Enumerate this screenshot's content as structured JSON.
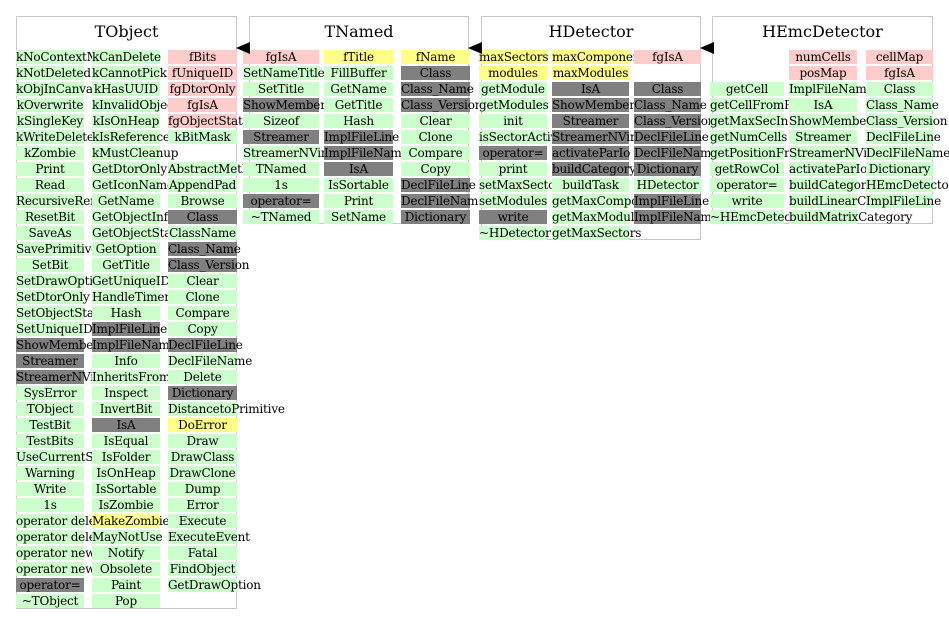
{
  "colors": {
    "green": "#ccffcc",
    "pink": "#ffcccc",
    "yellow": "#ffff88",
    "gray": "#808080"
  },
  "classes": [
    {
      "id": "tobject",
      "title": "TObject",
      "columns": [
        [
          {
            "t": "kNoContextMenu",
            "c": "green"
          },
          {
            "t": "kNotDeleted",
            "c": "green"
          },
          {
            "t": "kObjInCanvas",
            "c": "green"
          },
          {
            "t": "kOverwrite",
            "c": "green"
          },
          {
            "t": "kSingleKey",
            "c": "green"
          },
          {
            "t": "kWriteDelete",
            "c": "green"
          },
          {
            "t": "kZombie",
            "c": "green"
          },
          {
            "t": "Print",
            "c": "green"
          },
          {
            "t": "Read",
            "c": "green"
          },
          {
            "t": "RecursiveRemove",
            "c": "green"
          },
          {
            "t": "ResetBit",
            "c": "green"
          },
          {
            "t": "SaveAs",
            "c": "green"
          },
          {
            "t": "SavePrimitive",
            "c": "green"
          },
          {
            "t": "SetBit",
            "c": "green"
          },
          {
            "t": "SetDrawOption",
            "c": "green"
          },
          {
            "t": "SetDtorOnly",
            "c": "green"
          },
          {
            "t": "SetObjectStat",
            "c": "green"
          },
          {
            "t": "SetUniqueID",
            "c": "green"
          },
          {
            "t": "ShowMembers",
            "c": "gray"
          },
          {
            "t": "Streamer",
            "c": "gray"
          },
          {
            "t": "StreamerNVirtual",
            "c": "gray"
          },
          {
            "t": "SysError",
            "c": "green"
          },
          {
            "t": "TObject",
            "c": "green"
          },
          {
            "t": "TestBit",
            "c": "green"
          },
          {
            "t": "TestBits",
            "c": "green"
          },
          {
            "t": "UseCurrentStyle",
            "c": "green"
          },
          {
            "t": "Warning",
            "c": "green"
          },
          {
            "t": "Write",
            "c": "green"
          },
          {
            "t": "1s",
            "c": "green"
          },
          {
            "t": "operator delete",
            "c": "green"
          },
          {
            "t": "operator delete[]",
            "c": "green"
          },
          {
            "t": "operator new",
            "c": "green"
          },
          {
            "t": "operator new[]",
            "c": "green"
          },
          {
            "t": "operator=",
            "c": "gray"
          },
          {
            "t": "~TObject",
            "c": "green"
          }
        ],
        [
          {
            "t": "kCanDelete",
            "c": "green"
          },
          {
            "t": "kCannotPick",
            "c": "green"
          },
          {
            "t": "kHasUUID",
            "c": "green"
          },
          {
            "t": "kInvalidObject",
            "c": "green"
          },
          {
            "t": "kIsOnHeap",
            "c": "green"
          },
          {
            "t": "kIsReferenced",
            "c": "green"
          },
          {
            "t": "kMustCleanup",
            "c": "green"
          },
          {
            "t": "GetDtorOnly",
            "c": "green"
          },
          {
            "t": "GetIconName",
            "c": "green"
          },
          {
            "t": "GetName",
            "c": "green"
          },
          {
            "t": "GetObjectInfo",
            "c": "green"
          },
          {
            "t": "GetObjectStat",
            "c": "green"
          },
          {
            "t": "GetOption",
            "c": "green"
          },
          {
            "t": "GetTitle",
            "c": "green"
          },
          {
            "t": "GetUniqueID",
            "c": "green"
          },
          {
            "t": "HandleTimer",
            "c": "green"
          },
          {
            "t": "Hash",
            "c": "green"
          },
          {
            "t": "ImplFileLine",
            "c": "gray"
          },
          {
            "t": "ImplFileName",
            "c": "gray"
          },
          {
            "t": "Info",
            "c": "green"
          },
          {
            "t": "InheritsFrom",
            "c": "green"
          },
          {
            "t": "Inspect",
            "c": "green"
          },
          {
            "t": "InvertBit",
            "c": "green"
          },
          {
            "t": "IsA",
            "c": "gray"
          },
          {
            "t": "IsEqual",
            "c": "green"
          },
          {
            "t": "IsFolder",
            "c": "green"
          },
          {
            "t": "IsOnHeap",
            "c": "green"
          },
          {
            "t": "IsSortable",
            "c": "green"
          },
          {
            "t": "IsZombie",
            "c": "green"
          },
          {
            "t": "MakeZombie",
            "c": "yellow"
          },
          {
            "t": "MayNotUse",
            "c": "green"
          },
          {
            "t": "Notify",
            "c": "green"
          },
          {
            "t": "Obsolete",
            "c": "green"
          },
          {
            "t": "Paint",
            "c": "green"
          },
          {
            "t": "Pop",
            "c": "green"
          }
        ],
        [
          {
            "t": "fBits",
            "c": "pink"
          },
          {
            "t": "fUniqueID",
            "c": "pink"
          },
          {
            "t": "fgDtorOnly",
            "c": "pink"
          },
          {
            "t": "fgIsA",
            "c": "pink"
          },
          {
            "t": "fgObjectStat",
            "c": "pink"
          },
          {
            "t": "kBitMask",
            "c": "green"
          },
          {
            "t": "",
            "c": "white"
          },
          {
            "t": "AbstractMethod",
            "c": "green"
          },
          {
            "t": "AppendPad",
            "c": "green"
          },
          {
            "t": "Browse",
            "c": "green"
          },
          {
            "t": "Class",
            "c": "gray"
          },
          {
            "t": "ClassName",
            "c": "green"
          },
          {
            "t": "Class_Name",
            "c": "gray"
          },
          {
            "t": "Class_Version",
            "c": "gray"
          },
          {
            "t": "Clear",
            "c": "green"
          },
          {
            "t": "Clone",
            "c": "green"
          },
          {
            "t": "Compare",
            "c": "green"
          },
          {
            "t": "Copy",
            "c": "green"
          },
          {
            "t": "DeclFileLine",
            "c": "gray"
          },
          {
            "t": "DeclFileName",
            "c": "green"
          },
          {
            "t": "Delete",
            "c": "green"
          },
          {
            "t": "Dictionary",
            "c": "gray"
          },
          {
            "t": "DistancetoPrimitive",
            "c": "green"
          },
          {
            "t": "DoError",
            "c": "yellow"
          },
          {
            "t": "Draw",
            "c": "green"
          },
          {
            "t": "DrawClass",
            "c": "green"
          },
          {
            "t": "DrawClone",
            "c": "green"
          },
          {
            "t": "Dump",
            "c": "green"
          },
          {
            "t": "Error",
            "c": "green"
          },
          {
            "t": "Execute",
            "c": "green"
          },
          {
            "t": "ExecuteEvent",
            "c": "green"
          },
          {
            "t": "Fatal",
            "c": "green"
          },
          {
            "t": "FindObject",
            "c": "green"
          },
          {
            "t": "GetDrawOption",
            "c": "green"
          }
        ]
      ]
    },
    {
      "id": "tnamed",
      "title": "TNamed",
      "columns": [
        [
          {
            "t": "fgIsA",
            "c": "pink"
          },
          {
            "t": "SetNameTitle",
            "c": "green"
          },
          {
            "t": "SetTitle",
            "c": "green"
          },
          {
            "t": "ShowMembers",
            "c": "gray"
          },
          {
            "t": "Sizeof",
            "c": "green"
          },
          {
            "t": "Streamer",
            "c": "gray"
          },
          {
            "t": "StreamerNVirtual",
            "c": "green"
          },
          {
            "t": "TNamed",
            "c": "green"
          },
          {
            "t": "1s",
            "c": "green"
          },
          {
            "t": "operator=",
            "c": "gray"
          },
          {
            "t": "~TNamed",
            "c": "green"
          }
        ],
        [
          {
            "t": "fTitle",
            "c": "yellow"
          },
          {
            "t": "FillBuffer",
            "c": "green"
          },
          {
            "t": "GetName",
            "c": "green"
          },
          {
            "t": "GetTitle",
            "c": "green"
          },
          {
            "t": "Hash",
            "c": "green"
          },
          {
            "t": "ImplFileLine",
            "c": "gray"
          },
          {
            "t": "ImplFileName",
            "c": "gray"
          },
          {
            "t": "IsA",
            "c": "gray"
          },
          {
            "t": "IsSortable",
            "c": "green"
          },
          {
            "t": "Print",
            "c": "green"
          },
          {
            "t": "SetName",
            "c": "green"
          }
        ],
        [
          {
            "t": "fName",
            "c": "yellow"
          },
          {
            "t": "Class",
            "c": "gray"
          },
          {
            "t": "Class_Name",
            "c": "gray"
          },
          {
            "t": "Class_Version",
            "c": "gray"
          },
          {
            "t": "Clear",
            "c": "green"
          },
          {
            "t": "Clone",
            "c": "green"
          },
          {
            "t": "Compare",
            "c": "green"
          },
          {
            "t": "Copy",
            "c": "green"
          },
          {
            "t": "DeclFileLine",
            "c": "gray"
          },
          {
            "t": "DeclFileName",
            "c": "gray"
          },
          {
            "t": "Dictionary",
            "c": "gray"
          }
        ]
      ]
    },
    {
      "id": "hdetector",
      "title": "HDetector",
      "columns": [
        [
          {
            "t": "maxSectors",
            "c": "yellow"
          },
          {
            "t": "modules",
            "c": "yellow"
          },
          {
            "t": "getModule",
            "c": "green"
          },
          {
            "t": "getModules",
            "c": "green"
          },
          {
            "t": "init",
            "c": "green"
          },
          {
            "t": "isSectorActive",
            "c": "green"
          },
          {
            "t": "operator=",
            "c": "gray"
          },
          {
            "t": "print",
            "c": "green"
          },
          {
            "t": "setMaxSectors",
            "c": "green"
          },
          {
            "t": "setModules",
            "c": "green"
          },
          {
            "t": "write",
            "c": "gray"
          },
          {
            "t": "~HDetector",
            "c": "green"
          }
        ],
        [
          {
            "t": "maxComponents",
            "c": "yellow"
          },
          {
            "t": "maxModules",
            "c": "yellow"
          },
          {
            "t": "",
            "c": "white"
          },
          {
            "t": "ShowMembers",
            "c": "gray"
          },
          {
            "t": "Streamer",
            "c": "gray"
          },
          {
            "t": "StreamerNVirtual",
            "c": "gray"
          },
          {
            "t": "activateParIo",
            "c": "gray"
          },
          {
            "t": "buildCategory",
            "c": "gray"
          },
          {
            "t": "buildTask",
            "c": "green"
          },
          {
            "t": "getMaxComponents",
            "c": "green"
          },
          {
            "t": "getMaxModules",
            "c": "green"
          },
          {
            "t": "getMaxSectors",
            "c": "green"
          }
        ],
        [
          {
            "t": "fgIsA",
            "c": "pink"
          },
          {
            "t": "",
            "c": "white"
          },
          {
            "t": "Class",
            "c": "gray"
          },
          {
            "t": "Class_Name",
            "c": "gray"
          },
          {
            "t": "Class_Version",
            "c": "gray"
          },
          {
            "t": "DeclFileLine",
            "c": "gray"
          },
          {
            "t": "DeclFileName",
            "c": "gray"
          },
          {
            "t": "Dictionary",
            "c": "gray"
          },
          {
            "t": "HDetector",
            "c": "green"
          },
          {
            "t": "ImplFileLine",
            "c": "gray"
          },
          {
            "t": "ImplFileName",
            "c": "gray"
          }
        ]
      ],
      "extra": {
        "t": "IsA",
        "c": "gray"
      }
    },
    {
      "id": "hemcdetector",
      "title": "HEmcDetector",
      "columns": [
        [
          {
            "t": "",
            "c": "white"
          },
          {
            "t": "",
            "c": "white"
          },
          {
            "t": "getCell",
            "c": "green"
          },
          {
            "t": "getCellFromPosition",
            "c": "green"
          },
          {
            "t": "getMaxSecInSetup",
            "c": "green"
          },
          {
            "t": "getNumCells",
            "c": "green"
          },
          {
            "t": "getPositionFromCell",
            "c": "green"
          },
          {
            "t": "getRowCol",
            "c": "green"
          },
          {
            "t": "operator=",
            "c": "green"
          },
          {
            "t": "write",
            "c": "green"
          },
          {
            "t": "~HEmcDetector",
            "c": "green"
          }
        ],
        [
          {
            "t": "numCells",
            "c": "pink"
          },
          {
            "t": "posMap",
            "c": "pink"
          },
          {
            "t": "ImplFileName",
            "c": "green"
          },
          {
            "t": "IsA",
            "c": "green"
          },
          {
            "t": "ShowMembers",
            "c": "green"
          },
          {
            "t": "Streamer",
            "c": "green"
          },
          {
            "t": "StreamerNVirtual",
            "c": "green"
          },
          {
            "t": "activateParIo",
            "c": "green"
          },
          {
            "t": "buildCategory",
            "c": "green"
          },
          {
            "t": "buildLinearCategory",
            "c": "green"
          },
          {
            "t": "buildMatrixCategory",
            "c": "green"
          }
        ],
        [
          {
            "t": "cellMap",
            "c": "pink"
          },
          {
            "t": "fgIsA",
            "c": "pink"
          },
          {
            "t": "Class",
            "c": "green"
          },
          {
            "t": "Class_Name",
            "c": "green"
          },
          {
            "t": "Class_Version",
            "c": "green"
          },
          {
            "t": "DeclFileLine",
            "c": "green"
          },
          {
            "t": "DeclFileName",
            "c": "green"
          },
          {
            "t": "Dictionary",
            "c": "green"
          },
          {
            "t": "HEmcDetector",
            "c": "green"
          },
          {
            "t": "ImplFileLine",
            "c": "green"
          }
        ]
      ]
    }
  ],
  "inheritance": [
    {
      "from": "tnamed",
      "to": "tobject"
    },
    {
      "from": "hdetector",
      "to": "tnamed"
    },
    {
      "from": "hemcdetector",
      "to": "hdetector"
    }
  ]
}
